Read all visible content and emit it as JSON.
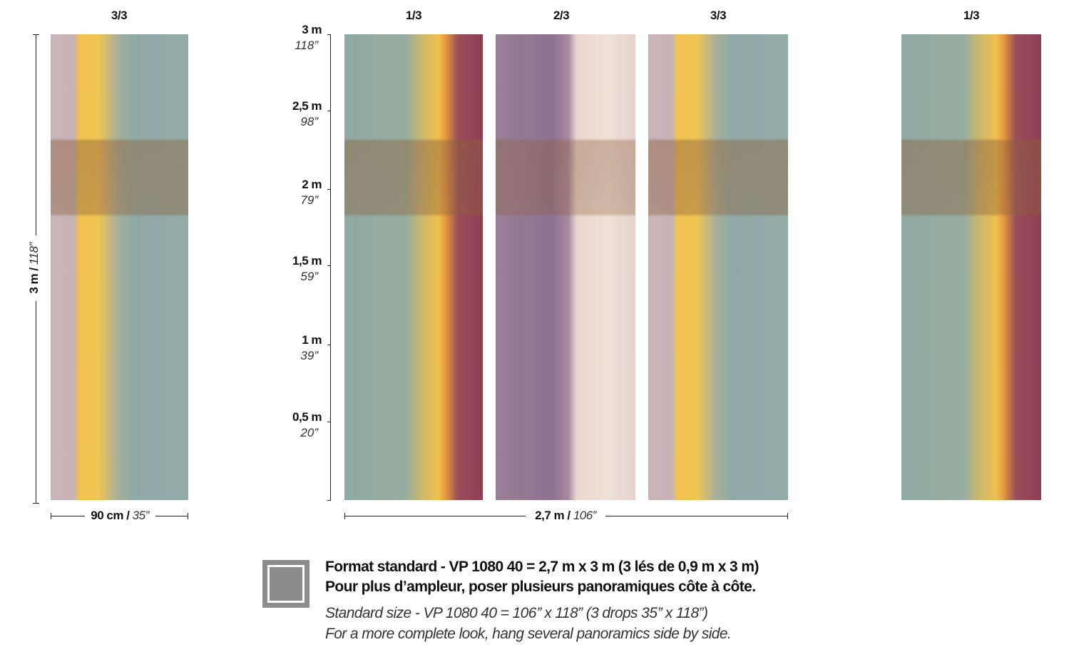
{
  "left_panel": {
    "label": "3/3",
    "height": {
      "metric": "3 m /",
      "imperial": "118”"
    },
    "width": {
      "metric": "90 cm /",
      "imperial": "35”"
    }
  },
  "panoramic": {
    "labels": [
      "1/3",
      "2/3",
      "3/3"
    ],
    "width": {
      "metric": "2,7 m /",
      "imperial": "106”"
    }
  },
  "right_panel": {
    "label": "1/3"
  },
  "scale": [
    {
      "metric": "3 m",
      "imperial": "118”"
    },
    {
      "metric": "2,5 m",
      "imperial": "98”"
    },
    {
      "metric": "2 m",
      "imperial": "79”"
    },
    {
      "metric": "1,5 m",
      "imperial": "59”"
    },
    {
      "metric": "1 m",
      "imperial": "39”"
    },
    {
      "metric": "0,5 m",
      "imperial": "20”"
    }
  ],
  "footer": {
    "french": [
      "Format standard - VP 1080 40 = 2,7 m x 3 m (3 lés de 0,9 m x 3 m)",
      "Pour plus d’ampleur, poser plusieurs panoramiques côte à côte."
    ],
    "english": [
      "Standard size - VP 1080 40 = 106’’ x 118” (3 drops 35’’ x 118”)",
      "For a more complete look, hang several panoramics side by side."
    ]
  }
}
